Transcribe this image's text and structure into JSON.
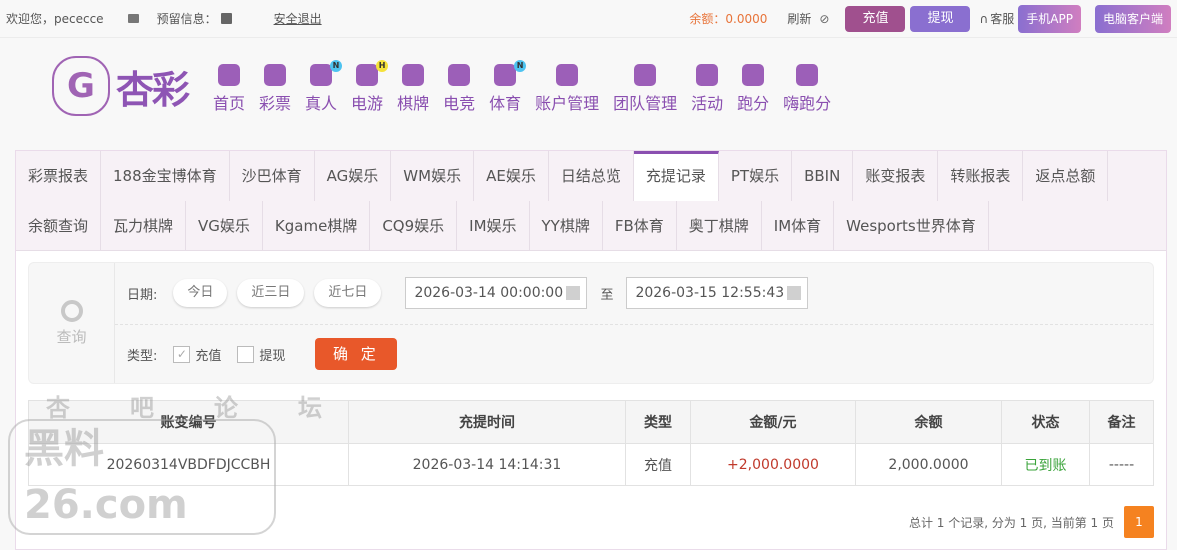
{
  "topbar": {
    "welcome": "欢迎您，pececce",
    "reserved_info": "预留信息：",
    "logout": "安全退出",
    "balance": "余额：0.0000",
    "refresh": "刷新",
    "deposit": "充值",
    "withdraw": "提现",
    "support": "客服",
    "mobile_app": "手机APP",
    "pc_client": "电脑客户端"
  },
  "logo": {
    "text": "杏彩"
  },
  "nav": [
    {
      "label": "首页",
      "icon": "home-icon"
    },
    {
      "label": "彩票",
      "icon": "ticket-icon"
    },
    {
      "label": "真人",
      "icon": "live-dealer-icon",
      "badge": "N"
    },
    {
      "label": "电游",
      "icon": "gamepad-icon",
      "badge": "H"
    },
    {
      "label": "棋牌",
      "icon": "cards-icon"
    },
    {
      "label": "电竞",
      "icon": "esports-icon"
    },
    {
      "label": "体育",
      "icon": "trophy-icon",
      "badge": "N"
    },
    {
      "label": "账户管理",
      "icon": "yen-coin-icon"
    },
    {
      "label": "团队管理",
      "icon": "team-icon"
    },
    {
      "label": "活动",
      "icon": "gift-icon"
    },
    {
      "label": "跑分",
      "icon": "rhino-icon"
    },
    {
      "label": "嗨跑分",
      "icon": "hi-icon"
    }
  ],
  "tabs_row1": [
    "彩票报表",
    "188金宝博体育",
    "沙巴体育",
    "AG娱乐",
    "WM娱乐",
    "AE娱乐",
    "日结总览",
    "充提记录",
    "PT娱乐",
    "BBIN",
    "账变报表",
    "转账报表",
    "返点总额"
  ],
  "tabs_row2": [
    "余额查询",
    "瓦力棋牌",
    "VG娱乐",
    "Kgame棋牌",
    "CQ9娱乐",
    "IM娱乐",
    "YY棋牌",
    "FB体育",
    "奥丁棋牌",
    "IM体育",
    "Wesports世界体育"
  ],
  "active_tab": "充提记录",
  "filter": {
    "query_label": "查询",
    "date_label": "日期:",
    "today": "今日",
    "last3": "近三日",
    "last7": "近七日",
    "start": "2026-03-14 00:00:00",
    "to": "至",
    "end": "2026-03-15 12:55:43",
    "type_label": "类型:",
    "type_deposit": "充值",
    "type_deposit_checked": true,
    "type_withdraw": "提现",
    "type_withdraw_checked": false,
    "confirm": "确 定"
  },
  "table": {
    "headers": [
      "账变编号",
      "充提时间",
      "类型",
      "金额/元",
      "余额",
      "状态",
      "备注"
    ],
    "rows": [
      [
        "20260314VBDFDJCCBH",
        "2026-03-14 14:14:31",
        "充值",
        "+2,000.0000",
        "2,000.0000",
        "已到账",
        "-----"
      ]
    ]
  },
  "pager": {
    "summary": "总计 1 个记录, 分为 1 页, 当前第 1 页",
    "current": "1"
  },
  "watermark": {
    "line1": "杏吧论坛",
    "line2": "黑料26.com"
  },
  "colors": {
    "brand": "#8a4fb0",
    "deposit_btn": "#a0508e",
    "withdraw_btn": "#8a6fd0",
    "confirm": "#e8582a",
    "amount": "#c0392b",
    "status_ok": "#3aa33a",
    "pager": "#f58220"
  }
}
